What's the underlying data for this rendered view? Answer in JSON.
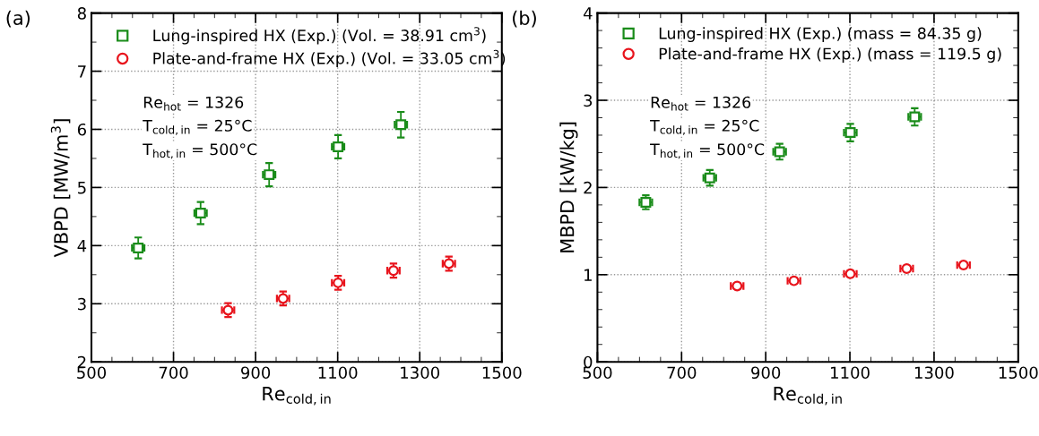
{
  "chart_data": [
    {
      "type": "scatter",
      "xlabel": "Re$_{cold,in}$",
      "ylabel": "VBPD [MW/m$^{3}$]",
      "annotations": [
        "(a)",
        "Re$_{hot}$ = 1326",
        "T$_{cold,in}$ = 25°C",
        "T$_{hot,in}$ = 500°C"
      ],
      "xlim": [
        500,
        1500
      ],
      "xticks": [
        500,
        700,
        900,
        1100,
        1300,
        1500
      ],
      "ylim": [
        2,
        8
      ],
      "yticks": [
        2,
        3,
        4,
        5,
        6,
        7,
        8
      ],
      "grid": true,
      "legend": "top left",
      "series": [
        {
          "name": "Lung-inspired HX (Exp.) (Vol. = 38.91 cm$^{3}$)",
          "color": "#1a8c1a",
          "marker": "square",
          "x": [
            614,
            766,
            933,
            1101,
            1254
          ],
          "values": [
            3.96,
            4.56,
            5.22,
            5.7,
            6.08
          ],
          "errors": [
            0.18,
            0.19,
            0.2,
            0.2,
            0.22
          ],
          "xerrors": [
            15,
            15,
            15,
            15,
            15
          ]
        },
        {
          "name": "Plate-and-frame HX (Exp.) (Vol. = 33.05 cm$^{3}$)",
          "color": "#e8141c",
          "marker": "circle",
          "x": [
            833,
            967,
            1101,
            1236,
            1371
          ],
          "values": [
            2.89,
            3.09,
            3.36,
            3.57,
            3.69
          ],
          "errors": [
            0.12,
            0.12,
            0.12,
            0.12,
            0.12
          ],
          "xerrors": [
            15,
            15,
            15,
            15,
            15
          ]
        }
      ]
    },
    {
      "type": "scatter",
      "xlabel": "Re$_{cold,in}$",
      "ylabel": "MBPD [kW/kg]",
      "annotations": [
        "(b)",
        "Re$_{hot}$ = 1326",
        "T$_{cold,in}$ = 25°C",
        "T$_{hot,in}$ = 500°C"
      ],
      "xlim": [
        500,
        1500
      ],
      "xticks": [
        500,
        700,
        900,
        1100,
        1300,
        1500
      ],
      "ylim": [
        0,
        4
      ],
      "yticks": [
        0,
        1,
        2,
        3,
        4
      ],
      "grid": true,
      "legend": "top left",
      "series": [
        {
          "name": "Lung-inspired HX (Exp.) (mass = 84.35 g)",
          "color": "#1a8c1a",
          "marker": "square",
          "x": [
            615,
            767,
            933,
            1101,
            1254
          ],
          "values": [
            1.83,
            2.11,
            2.41,
            2.63,
            2.81
          ],
          "errors": [
            0.08,
            0.09,
            0.09,
            0.1,
            0.1
          ],
          "xerrors": [
            15,
            15,
            15,
            15,
            15
          ]
        },
        {
          "name": "Plate-and-frame HX (Exp.) (mass = 119.5 g)",
          "color": "#e8141c",
          "marker": "circle",
          "x": [
            832,
            967,
            1101,
            1235,
            1370
          ],
          "values": [
            0.87,
            0.93,
            1.01,
            1.07,
            1.11
          ],
          "errors": [
            0.03,
            0.03,
            0.03,
            0.03,
            0.03
          ],
          "xerrors": [
            15,
            15,
            15,
            15,
            15
          ]
        }
      ]
    }
  ]
}
